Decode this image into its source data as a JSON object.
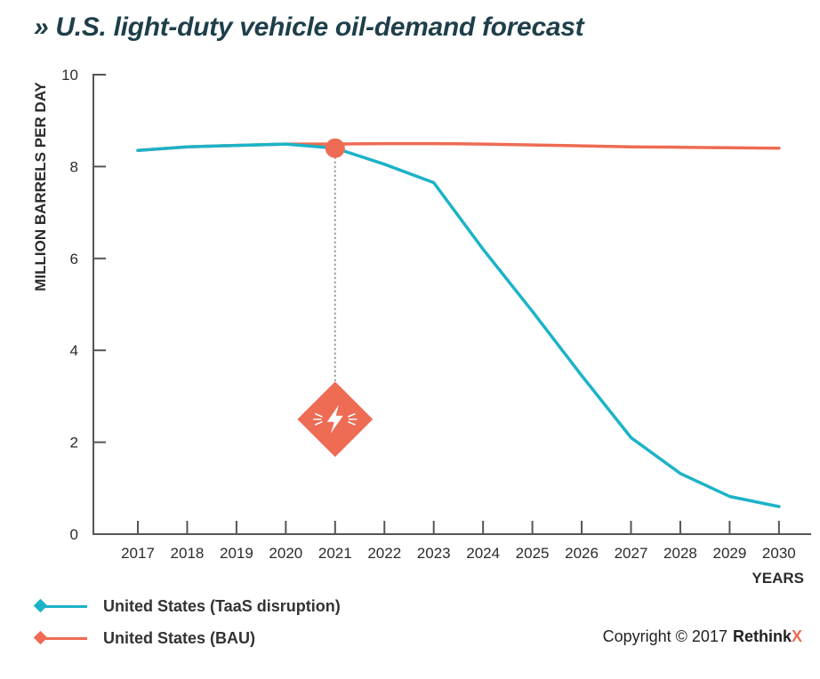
{
  "title": "» U.S. light-duty vehicle oil-demand forecast",
  "colors": {
    "taas": "#1cb3c8",
    "bau": "#ee6b54",
    "axis": "#555555",
    "text": "#2b2b2b"
  },
  "chart_data": {
    "type": "line",
    "title": "» U.S. light-duty vehicle oil-demand forecast",
    "xlabel": "YEARS",
    "ylabel": "MILLION BARRELS PER DAY",
    "ylim": [
      0,
      10
    ],
    "yticks": [
      0,
      2,
      4,
      6,
      8,
      10
    ],
    "grid": false,
    "legend_position": "bottom-left",
    "x": [
      "2017",
      "2018",
      "2019",
      "2020",
      "2021",
      "2022",
      "2023",
      "2024",
      "2025",
      "2026",
      "2027",
      "2028",
      "2029",
      "2030"
    ],
    "series": [
      {
        "name": "United States (TaaS disruption)",
        "color": "#1cb3c8",
        "values": [
          8.35,
          8.43,
          8.46,
          8.49,
          8.4,
          8.05,
          7.65,
          6.2,
          4.85,
          3.45,
          2.1,
          1.32,
          0.82,
          0.6
        ]
      },
      {
        "name": "United States (BAU)",
        "color": "#ee6b54",
        "values": [
          8.35,
          8.43,
          8.46,
          8.49,
          8.49,
          8.5,
          8.5,
          8.49,
          8.47,
          8.45,
          8.43,
          8.42,
          8.41,
          8.4
        ]
      }
    ],
    "annotation": {
      "type": "disruption-marker",
      "icon": "lightning-bolt-icon",
      "x": "2021",
      "y": 8.4,
      "diamond_y": 2.5
    }
  },
  "legend": {
    "items": [
      {
        "label": "United States (TaaS disruption)",
        "color": "#1cb3c8"
      },
      {
        "label": "United States (BAU)",
        "color": "#ee6b54"
      }
    ]
  },
  "copyright": {
    "text": "Copyright © 2017",
    "brand": "Rethink",
    "brand_mark": "X"
  }
}
